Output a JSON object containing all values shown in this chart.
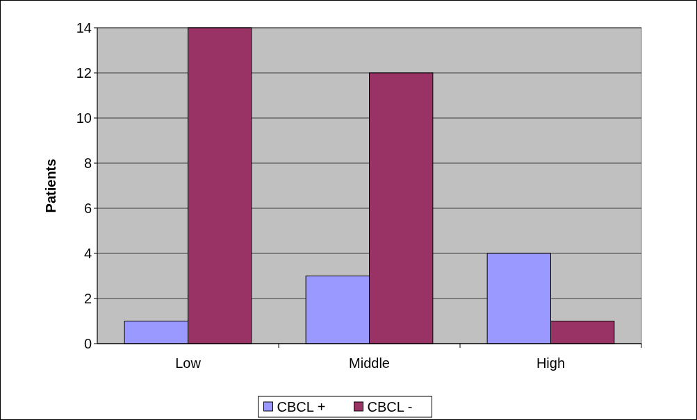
{
  "chart_data": {
    "type": "bar",
    "ylabel": "Patients",
    "categories": [
      "Low",
      "Middle",
      "High"
    ],
    "series": [
      {
        "name": "CBCL +",
        "color": "#9999ff",
        "values": [
          1,
          3,
          4
        ]
      },
      {
        "name": "CBCL -",
        "color": "#993366",
        "values": [
          14,
          12,
          1
        ]
      }
    ],
    "ylim": [
      0,
      14
    ],
    "yticks": [
      0,
      2,
      4,
      6,
      8,
      10,
      12,
      14
    ],
    "grid": "y",
    "legend": "bottom"
  }
}
